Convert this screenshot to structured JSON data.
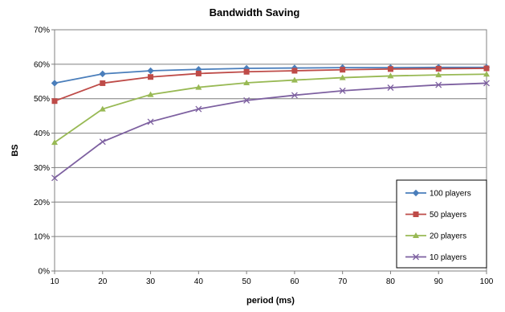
{
  "chart_data": {
    "type": "line",
    "title": "Bandwidth Saving",
    "xlabel": "period (ms)",
    "ylabel": "BS",
    "x": [
      10,
      20,
      30,
      40,
      50,
      60,
      70,
      80,
      90,
      100
    ],
    "xlim": [
      10,
      100
    ],
    "ylim": [
      0,
      70
    ],
    "y_ticks": [
      "0%",
      "10%",
      "20%",
      "30%",
      "40%",
      "50%",
      "60%",
      "70%"
    ],
    "x_ticks": [
      "10",
      "20",
      "30",
      "40",
      "50",
      "60",
      "70",
      "80",
      "90",
      "100"
    ],
    "grid": "horizontal",
    "legend_position": "bottom-right",
    "series": [
      {
        "name": "100 players",
        "color": "#4a7ebb",
        "marker": "diamond",
        "values": [
          54.5,
          57.2,
          58.1,
          58.5,
          58.8,
          58.9,
          59.0,
          59.0,
          59.1,
          59.1
        ]
      },
      {
        "name": "50 players",
        "color": "#be4b48",
        "marker": "square",
        "values": [
          49.3,
          54.5,
          56.3,
          57.3,
          57.8,
          58.1,
          58.4,
          58.6,
          58.7,
          58.8
        ]
      },
      {
        "name": "20 players",
        "color": "#98b954",
        "marker": "triangle",
        "values": [
          37.3,
          47.0,
          51.2,
          53.3,
          54.6,
          55.4,
          56.1,
          56.6,
          56.9,
          57.1
        ]
      },
      {
        "name": "10 players",
        "color": "#7d60a0",
        "marker": "x",
        "values": [
          27.0,
          37.5,
          43.3,
          47.0,
          49.5,
          51.0,
          52.3,
          53.2,
          54.0,
          54.5
        ]
      }
    ]
  }
}
